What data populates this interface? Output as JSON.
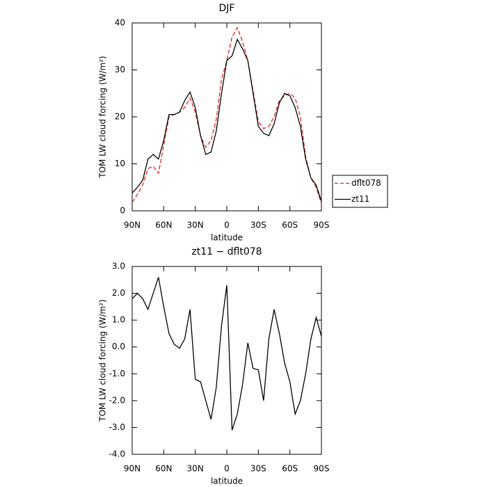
{
  "chart_data": [
    {
      "type": "line",
      "title": "DJF",
      "xlabel": "latitude",
      "ylabel": "TOM LW cloud forcing (W/m²)",
      "x": [
        90,
        85,
        80,
        75,
        70,
        65,
        60,
        55,
        50,
        45,
        40,
        35,
        30,
        25,
        20,
        15,
        10,
        5,
        0,
        -5,
        -10,
        -15,
        -20,
        -25,
        -30,
        -35,
        -40,
        -45,
        -50,
        -55,
        -60,
        -65,
        -70,
        -75,
        -80,
        -85,
        -90
      ],
      "xlim": [
        90,
        -90
      ],
      "xticks": [
        {
          "value": 90,
          "label": "90N"
        },
        {
          "value": 60,
          "label": "60N"
        },
        {
          "value": 30,
          "label": "30N"
        },
        0,
        {
          "value": -30,
          "label": "30S"
        },
        {
          "value": -60,
          "label": "60S"
        },
        {
          "value": -90,
          "label": "90S"
        }
      ],
      "ylim": [
        0,
        40
      ],
      "yticks": [
        0,
        10,
        20,
        30,
        40
      ],
      "legend": "right",
      "series": [
        {
          "name": "dflt078",
          "color": "#e8231e",
          "dash": true,
          "values": [
            1.8,
            3.5,
            5.5,
            9,
            9.5,
            8,
            14,
            20,
            20.5,
            21,
            22,
            24,
            21,
            16,
            13.5,
            15,
            19.5,
            28,
            32,
            37,
            39,
            36,
            32,
            25.5,
            19,
            17.5,
            18,
            20,
            23.5,
            24.5,
            25,
            24,
            20,
            11.5,
            7,
            5,
            1.5
          ]
        },
        {
          "name": "zt11",
          "color": "#000000",
          "dash": false,
          "values": [
            3.8,
            5,
            6.5,
            11,
            12,
            11,
            15,
            20.5,
            20.5,
            21,
            23.5,
            25.3,
            22,
            16,
            12,
            12.5,
            17,
            25,
            32,
            33,
            36.5,
            34.5,
            32,
            25,
            18,
            16.5,
            16,
            18.5,
            23,
            25,
            24.5,
            22,
            18,
            11,
            7,
            5.5,
            2
          ]
        }
      ]
    },
    {
      "type": "line",
      "title": "zt11 − dflt078",
      "xlabel": "latitude",
      "ylabel": "TOM LW cloud forcing (W/m²)",
      "x": [
        90,
        85,
        80,
        75,
        70,
        65,
        60,
        55,
        50,
        45,
        40,
        35,
        30,
        25,
        20,
        15,
        10,
        5,
        0,
        -5,
        -10,
        -15,
        -20,
        -25,
        -30,
        -35,
        -40,
        -45,
        -50,
        -55,
        -60,
        -65,
        -70,
        -75,
        -80,
        -85,
        -90
      ],
      "xlim": [
        90,
        -90
      ],
      "xticks": [
        {
          "value": 90,
          "label": "90N"
        },
        {
          "value": 60,
          "label": "60N"
        },
        {
          "value": 30,
          "label": "30N"
        },
        0,
        {
          "value": -30,
          "label": "30S"
        },
        {
          "value": -60,
          "label": "60S"
        },
        {
          "value": -90,
          "label": "90S"
        }
      ],
      "ylim": [
        -4,
        3
      ],
      "yticks": [
        {
          "value": -4,
          "label": "-4.0"
        },
        {
          "value": -3,
          "label": "-3.0"
        },
        {
          "value": -2,
          "label": "-2.0"
        },
        {
          "value": -1,
          "label": "-1.0"
        },
        {
          "value": 0,
          "label": "0.0"
        },
        {
          "value": 1,
          "label": "1.0"
        },
        {
          "value": 2,
          "label": "2.0"
        },
        {
          "value": 3,
          "label": "3.0"
        }
      ],
      "series": [
        {
          "color": "#000000",
          "dash": false,
          "values": [
            1.8,
            2.0,
            1.8,
            1.4,
            2.0,
            2.6,
            1.5,
            0.5,
            0.1,
            -0.05,
            0.3,
            1.4,
            -1.2,
            -1.3,
            -2.0,
            -2.7,
            -1.5,
            0.8,
            2.3,
            -3.1,
            -2.5,
            -1.4,
            0.15,
            -0.8,
            -0.85,
            -2.0,
            0.3,
            1.4,
            0.5,
            -0.6,
            -1.3,
            -2.5,
            -2.0,
            -1.0,
            0.3,
            1.1,
            0.4
          ]
        }
      ]
    }
  ]
}
